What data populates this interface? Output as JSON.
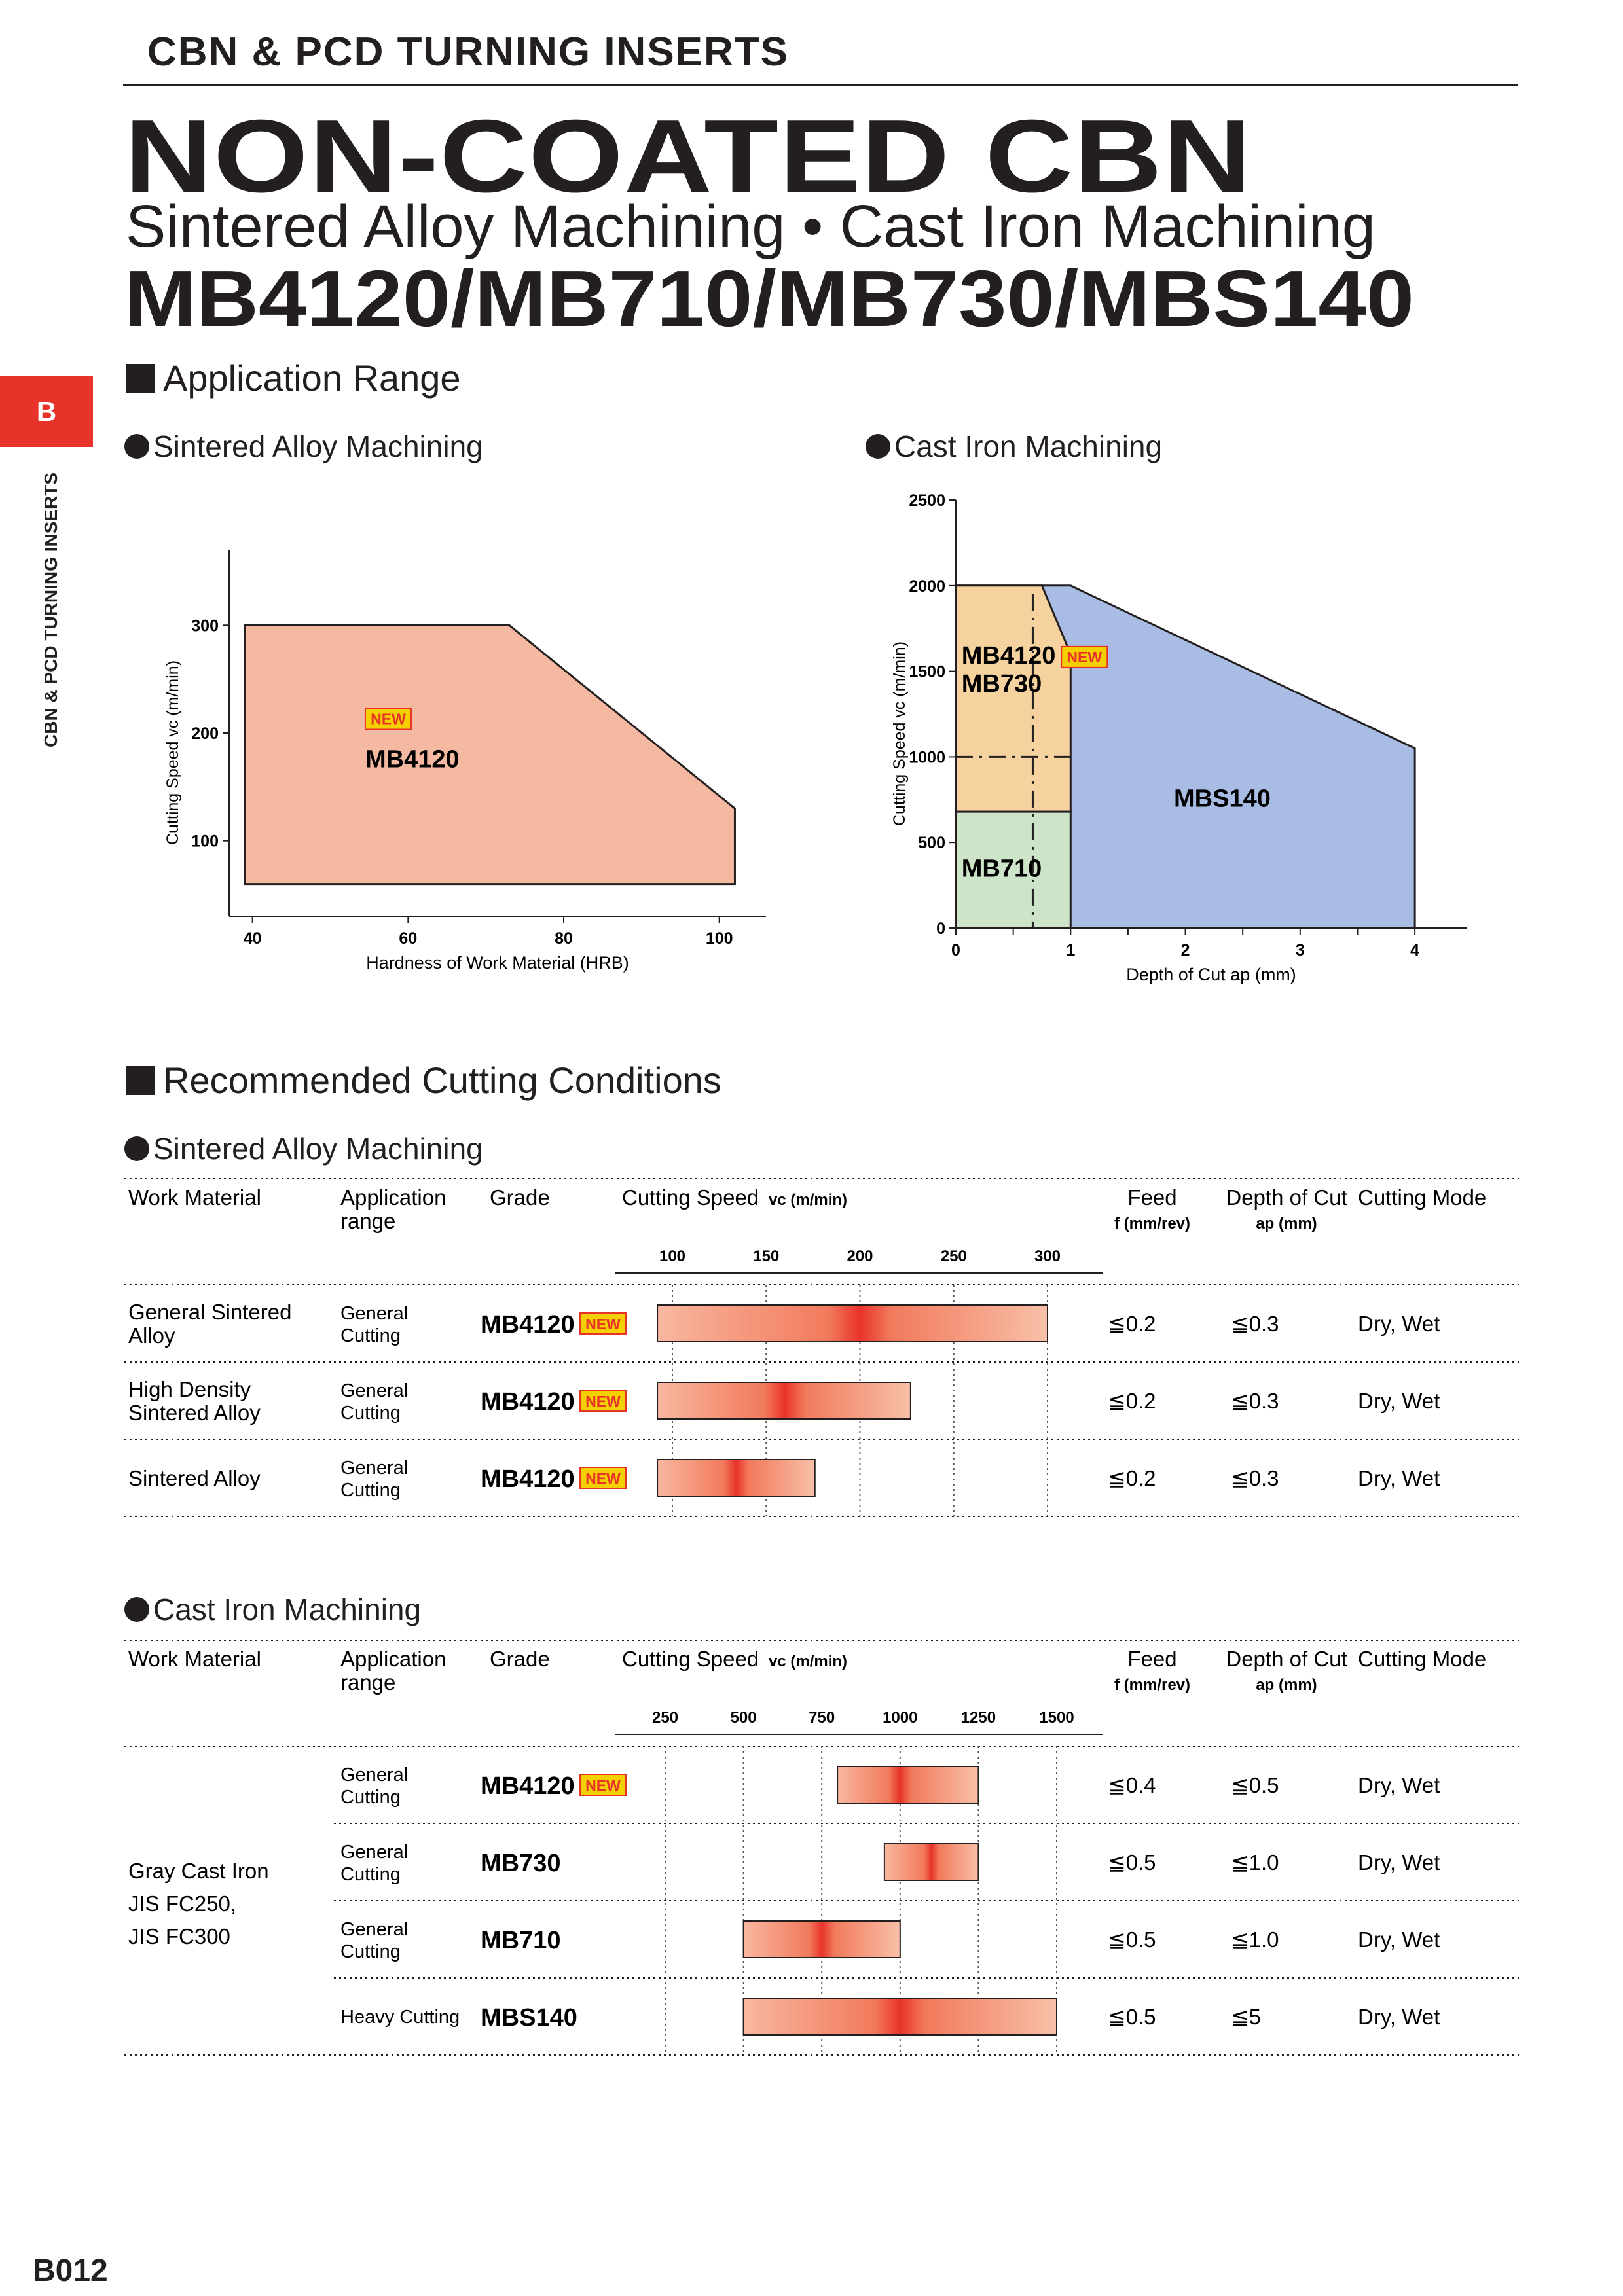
{
  "header": {
    "title": "CBN & PCD TURNING INSERTS",
    "side_tab": "B",
    "side_text": "CBN & PCD TURNING INSERTS",
    "page_number": "B012"
  },
  "title": {
    "main": "NON-COATED CBN",
    "subtitle": "Sintered Alloy Machining • Cast Iron Machining",
    "grades": "MB4120/MB710/MB730/MBS140"
  },
  "application_range": {
    "heading": "Application Range",
    "sintered_heading": "Sintered Alloy Machining",
    "cast_iron_heading": "Cast Iron Machining"
  },
  "chart_data": [
    {
      "type": "area",
      "title": "Sintered Alloy Machining",
      "xlabel": "Hardness of Work Material (HRB)",
      "ylabel": "Cutting Speed vc (m/min)",
      "xlim": [
        37,
        106
      ],
      "ylim": [
        30,
        370
      ],
      "x_ticks": [
        40,
        60,
        80,
        100
      ],
      "y_ticks": [
        100,
        200,
        300
      ],
      "grid": false,
      "series": [
        {
          "name": "MB4120",
          "badge": "NEW",
          "color": "#f5b8a0",
          "polygon": [
            [
              39,
              60
            ],
            [
              39,
              300
            ],
            [
              73,
              300
            ],
            [
              102,
              130
            ],
            [
              102,
              60
            ]
          ]
        }
      ]
    },
    {
      "type": "area",
      "title": "Cast Iron Machining",
      "xlabel": "Depth of Cut ap (mm)",
      "ylabel": "Cutting Speed vc (m/min)",
      "xlim": [
        0,
        4.45
      ],
      "ylim": [
        0,
        2500
      ],
      "x_ticks": [
        0,
        1,
        2,
        3,
        4
      ],
      "y_ticks": [
        0,
        500,
        1000,
        1500,
        2000,
        2500
      ],
      "grid": false,
      "series": [
        {
          "name": "MBS140",
          "color": "#a9bde4",
          "polygon": [
            [
              0,
              0
            ],
            [
              0,
              2000
            ],
            [
              1.0,
              2000
            ],
            [
              4.0,
              1050
            ],
            [
              4.0,
              0
            ]
          ]
        },
        {
          "name": "MB4120",
          "badge": "NEW",
          "color": "#f6d39e",
          "polygon": [
            [
              0,
              680
            ],
            [
              0,
              2000
            ],
            [
              0.75,
              2000
            ],
            [
              1.0,
              1600
            ],
            [
              1.0,
              680
            ]
          ]
        },
        {
          "name": "MB730",
          "color": "#f6d39e",
          "polygon": [
            [
              0,
              680
            ],
            [
              0,
              2000
            ],
            [
              0.75,
              2000
            ],
            [
              1.0,
              1600
            ],
            [
              1.0,
              680
            ]
          ]
        },
        {
          "name": "MB710",
          "color": "#cde4c8",
          "polygon": [
            [
              0,
              0
            ],
            [
              0,
              680
            ],
            [
              1.0,
              680
            ],
            [
              1.0,
              0
            ]
          ]
        }
      ]
    }
  ],
  "recommended": {
    "heading": "Recommended Cutting Conditions",
    "columns": {
      "work_material": "Work Material",
      "application": "Application range",
      "grade": "Grade",
      "speed": "Cutting Speed",
      "speed_unit": "vc (m/min)",
      "feed": "Feed",
      "feed_unit": "f (mm/rev)",
      "doc": "Depth of Cut",
      "doc_unit": "ap (mm)",
      "mode": "Cutting Mode"
    },
    "sintered": {
      "heading": "Sintered Alloy Machining",
      "axis_ticks": [
        "100",
        "150",
        "200",
        "250",
        "300"
      ],
      "rows": [
        {
          "material": "General Sintered Alloy",
          "application": "General Cutting",
          "grade": "MB4120",
          "badge": "NEW",
          "speed_min": 92,
          "speed_max": 300,
          "speed_peak": 200,
          "feed": "≦0.2",
          "doc": "≦0.3",
          "mode": "Dry, Wet"
        },
        {
          "material": "High Density Sintered Alloy",
          "application": "General Cutting",
          "grade": "MB4120",
          "badge": "NEW",
          "speed_min": 92,
          "speed_max": 227,
          "speed_peak": 160,
          "feed": "≦0.2",
          "doc": "≦0.3",
          "mode": "Dry, Wet"
        },
        {
          "material": "Sintered Alloy",
          "application": "General Cutting",
          "grade": "MB4120",
          "badge": "NEW",
          "speed_min": 92,
          "speed_max": 176,
          "speed_peak": 134,
          "feed": "≦0.2",
          "doc": "≦0.3",
          "mode": "Dry, Wet"
        }
      ]
    },
    "cast_iron": {
      "heading": "Cast Iron Machining",
      "material_lines": [
        "Gray Cast Iron",
        "JIS FC250,",
        "JIS FC300"
      ],
      "axis_ticks": [
        "250",
        "500",
        "750",
        "1000",
        "1250",
        "1500"
      ],
      "rows": [
        {
          "application": "General Cutting",
          "grade": "MB4120",
          "badge": "NEW",
          "speed_min": 800,
          "speed_max": 1250,
          "speed_peak": 1000,
          "feed": "≦0.4",
          "doc": "≦0.5",
          "mode": "Dry, Wet"
        },
        {
          "application": "General Cutting",
          "grade": "MB730",
          "badge": "",
          "speed_min": 950,
          "speed_max": 1250,
          "speed_peak": 1100,
          "feed": "≦0.5",
          "doc": "≦1.0",
          "mode": "Dry, Wet"
        },
        {
          "application": "General Cutting",
          "grade": "MB710",
          "badge": "",
          "speed_min": 500,
          "speed_max": 1000,
          "speed_peak": 750,
          "feed": "≦0.5",
          "doc": "≦1.0",
          "mode": "Dry, Wet"
        },
        {
          "application": "Heavy Cutting",
          "grade": "MBS140",
          "badge": "",
          "speed_min": 500,
          "speed_max": 1500,
          "speed_peak": 1000,
          "feed": "≦0.5",
          "doc": "≦5",
          "mode": "Dry, Wet"
        }
      ]
    }
  }
}
